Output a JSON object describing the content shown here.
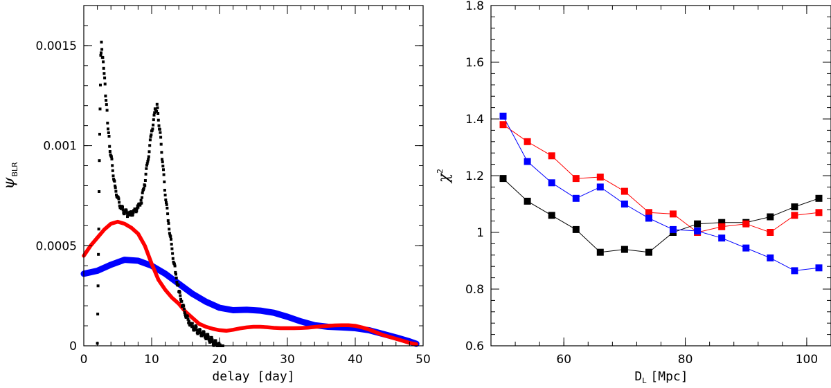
{
  "chart_data": [
    {
      "type": "line",
      "xlabel": "delay [day]",
      "ylabel": {
        "symbol": "ψ",
        "subscript": "BLR"
      },
      "xlim": [
        0,
        50
      ],
      "ylim": [
        0,
        0.0017
      ],
      "x_ticks": [
        0,
        10,
        20,
        30,
        40,
        50
      ],
      "x_tick_labels": [
        "0",
        "10",
        "20",
        "30",
        "40",
        "50"
      ],
      "y_ticks": [
        0,
        0.0005,
        0.001,
        0.0015
      ],
      "y_tick_labels": [
        "0",
        "0.0005",
        "0.001",
        "0.0015"
      ],
      "series": [
        {
          "name": "black",
          "style": "scatter",
          "color": "#000000",
          "x": [
            2.0,
            2.1,
            2.2,
            2.3,
            2.4,
            2.5,
            2.6,
            2.8,
            3.0,
            3.2,
            3.5,
            3.8,
            4.2,
            4.6,
            5.0,
            5.5,
            6.0,
            6.5,
            7.0,
            7.5,
            8.0,
            8.5,
            9.0,
            9.5,
            10.0,
            10.5,
            10.8,
            11.2,
            11.6,
            12.0,
            12.5,
            13.0,
            13.5,
            14.0,
            14.5,
            15.0,
            15.5,
            16.0,
            16.5,
            17.0,
            17.5,
            18.0,
            18.5,
            19.0,
            19.5,
            20.0,
            20.5
          ],
          "y": [
            0.0,
            0.0003,
            0.0006,
            0.00095,
            0.0012,
            0.00145,
            0.0015,
            0.00142,
            0.00135,
            0.00125,
            0.00112,
            0.001,
            0.0009,
            0.0008,
            0.00075,
            0.0007,
            0.00068,
            0.00066,
            0.00065,
            0.00066,
            0.00068,
            0.00072,
            0.00082,
            0.00095,
            0.00108,
            0.00118,
            0.0012,
            0.00108,
            0.00092,
            0.00075,
            0.0006,
            0.00047,
            0.00036,
            0.00028,
            0.00022,
            0.00017,
            0.00013,
            0.0001,
            8e-05,
            6e-05,
            5e-05,
            4e-05,
            3e-05,
            2e-05,
            1.2e-05,
            6e-06,
            0.0
          ]
        },
        {
          "name": "red",
          "style": "line",
          "color": "#ff0000",
          "x": [
            0,
            1,
            2,
            3,
            4,
            5,
            6,
            7,
            8,
            9,
            10,
            11,
            12,
            13,
            14,
            15,
            16,
            17,
            18,
            19,
            20,
            21,
            22,
            23,
            24,
            25,
            26,
            27,
            28,
            29,
            30,
            31,
            32,
            33,
            34,
            35,
            36,
            37,
            38,
            39,
            40,
            41,
            42,
            43,
            44,
            45,
            46,
            47,
            48,
            49
          ],
          "y": [
            0.00045,
            0.0005,
            0.00054,
            0.00058,
            0.00061,
            0.00062,
            0.00061,
            0.00059,
            0.00056,
            0.0005,
            0.00041,
            0.00033,
            0.00028,
            0.00024,
            0.00021,
            0.00017,
            0.00014,
            0.00011,
            9.5e-05,
            8.5e-05,
            7.8e-05,
            7.5e-05,
            8e-05,
            8.7e-05,
            9.2e-05,
            9.5e-05,
            9.5e-05,
            9.3e-05,
            9e-05,
            8.8e-05,
            8.8e-05,
            8.8e-05,
            8.9e-05,
            9.1e-05,
            9.4e-05,
            9.7e-05,
            0.0001,
            0.000102,
            0.000103,
            0.000103,
            0.0001,
            9.2e-05,
            8.2e-05,
            6.8e-05,
            5.5e-05,
            4.5e-05,
            3.5e-05,
            2.5e-05,
            1.5e-05,
            8e-06
          ]
        },
        {
          "name": "blue",
          "style": "line",
          "color": "#0000ff",
          "x": [
            0,
            2,
            4,
            6,
            8,
            10,
            12,
            14,
            16,
            18,
            20,
            22,
            24,
            26,
            28,
            30,
            32,
            34,
            36,
            38,
            40,
            42,
            44,
            46,
            48,
            49
          ],
          "y": [
            0.00036,
            0.000375,
            0.000405,
            0.00043,
            0.000425,
            0.0004,
            0.00036,
            0.00031,
            0.00026,
            0.00022,
            0.00019,
            0.000178,
            0.00018,
            0.000176,
            0.000165,
            0.000145,
            0.000122,
            0.000103,
            9.5e-05,
            9.2e-05,
            8.8e-05,
            7.8e-05,
            6e-05,
            4.2e-05,
            2.2e-05,
            1e-05
          ]
        }
      ]
    },
    {
      "type": "line",
      "xlabel": {
        "text": "D",
        "subscript": "L",
        "suffix": "[Mpc]"
      },
      "ylabel": {
        "symbol": "χ",
        "superscript": "2"
      },
      "xlim": [
        48,
        104
      ],
      "ylim": [
        0.6,
        1.8
      ],
      "x_ticks": [
        60,
        80,
        100
      ],
      "x_tick_labels": [
        "60",
        "80",
        "100"
      ],
      "y_ticks": [
        0.6,
        0.8,
        1.0,
        1.2,
        1.4,
        1.6,
        1.8
      ],
      "y_tick_labels": [
        "0.6",
        "0.8",
        "1",
        "1.2",
        "1.4",
        "1.6",
        "1.8"
      ],
      "x": [
        50,
        54,
        58,
        62,
        66,
        70,
        74,
        78,
        82,
        86,
        90,
        94,
        98,
        102
      ],
      "series": [
        {
          "name": "black",
          "color": "#000000",
          "marker": "square",
          "values": [
            1.19,
            1.11,
            1.06,
            1.01,
            0.93,
            0.94,
            0.93,
            1.0,
            1.03,
            1.035,
            1.035,
            1.055,
            1.09,
            1.12
          ]
        },
        {
          "name": "red",
          "color": "#ff0000",
          "marker": "square",
          "values": [
            1.38,
            1.32,
            1.27,
            1.19,
            1.195,
            1.145,
            1.07,
            1.065,
            1.0,
            1.02,
            1.03,
            1.0,
            1.06,
            1.07
          ]
        },
        {
          "name": "blue",
          "color": "#0000ff",
          "marker": "square",
          "values": [
            1.41,
            1.25,
            1.175,
            1.12,
            1.16,
            1.1,
            1.05,
            1.01,
            1.005,
            0.98,
            0.945,
            0.91,
            0.865,
            0.875
          ]
        }
      ]
    }
  ]
}
